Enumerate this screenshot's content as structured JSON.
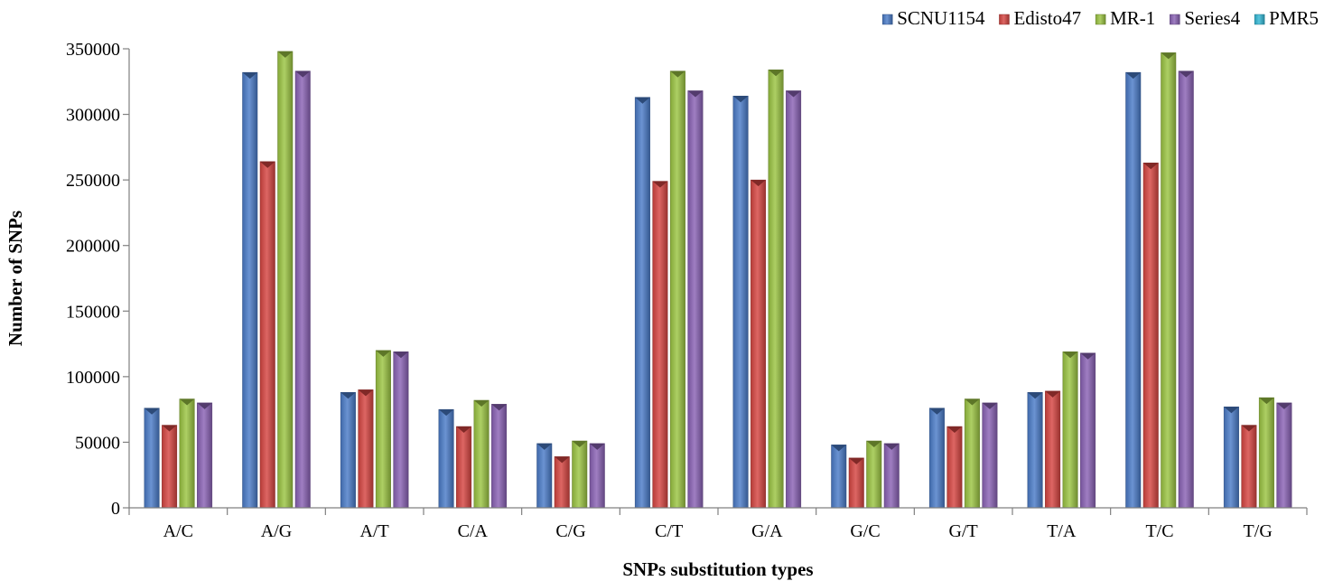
{
  "chart_data": {
    "type": "bar",
    "title": "",
    "xlabel": "SNPs substitution types",
    "ylabel": "Number of SNPs",
    "ylim": [
      0,
      350000
    ],
    "yticks": [
      0,
      50000,
      100000,
      150000,
      200000,
      250000,
      300000,
      350000
    ],
    "grid": false,
    "legend_position": "top-right",
    "categories": [
      "A/C",
      "A/G",
      "A/T",
      "C/A",
      "C/G",
      "C/T",
      "G/A",
      "G/C",
      "G/T",
      "T/A",
      "T/C",
      "T/G"
    ],
    "series": [
      {
        "name": "SCNU1154",
        "color": "#4a7bc8",
        "values": [
          76000,
          332000,
          88000,
          75000,
          49000,
          313000,
          314000,
          48000,
          76000,
          88000,
          332000,
          77000
        ]
      },
      {
        "name": "Edisto47",
        "color": "#d64541",
        "values": [
          63000,
          264000,
          90000,
          62000,
          39000,
          249000,
          250000,
          38000,
          62000,
          89000,
          263000,
          63000
        ]
      },
      {
        "name": "MR-1",
        "color": "#9bc442",
        "values": [
          83000,
          348000,
          120000,
          82000,
          51000,
          333000,
          334000,
          51000,
          83000,
          119000,
          347000,
          84000
        ]
      },
      {
        "name": "Series4",
        "color": "#8a62b5",
        "values": [
          80000,
          333000,
          119000,
          79000,
          49000,
          318000,
          318000,
          49000,
          80000,
          118000,
          333000,
          80000
        ]
      },
      {
        "name": "PMR5",
        "color": "#33b8d6",
        "values": [
          0,
          0,
          0,
          0,
          0,
          0,
          0,
          0,
          0,
          0,
          0,
          0
        ]
      }
    ]
  }
}
